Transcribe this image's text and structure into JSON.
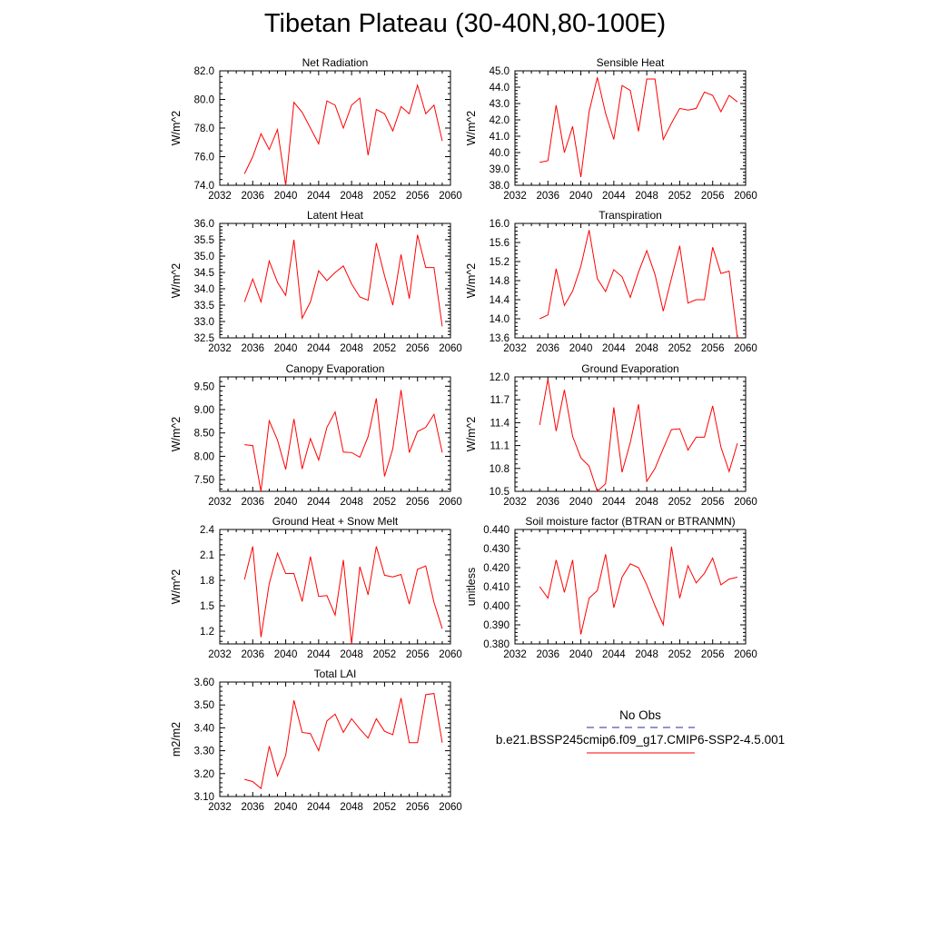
{
  "page": {
    "title": "Tibetan Plateau (30-40N,80-100E)"
  },
  "legend": {
    "entries": [
      {
        "label": "No Obs",
        "color": "#2a2a9a",
        "style": "dashed"
      },
      {
        "label": "b.e21.BSSP245cmip6.f09_g17.CMIP6-SSP2-4.5.001",
        "color": "#ff0000",
        "style": "solid"
      }
    ]
  },
  "chart_data": [
    {
      "type": "line",
      "title": "Net Radiation",
      "ylabel": "W/m^2",
      "xlabel": "",
      "xlim": [
        2032,
        2060
      ],
      "ylim": [
        74.0,
        82.0
      ],
      "xticks": [
        2032,
        2036,
        2040,
        2044,
        2048,
        2052,
        2056,
        2060
      ],
      "yticks": [
        "74.0",
        "76.0",
        "78.0",
        "80.0",
        "82.0"
      ],
      "series": [
        {
          "color": "#ff0000",
          "x": [
            2035,
            2036,
            2037,
            2038,
            2039,
            2040,
            2041,
            2042,
            2043,
            2044,
            2045,
            2046,
            2047,
            2048,
            2049,
            2050,
            2051,
            2052,
            2053,
            2054,
            2055,
            2056,
            2057,
            2058,
            2059
          ],
          "y": [
            74.8,
            76.0,
            77.6,
            76.5,
            77.9,
            74.0,
            79.8,
            79.1,
            78.0,
            76.9,
            79.9,
            79.6,
            78.0,
            79.6,
            80.1,
            76.1,
            79.3,
            79.0,
            77.8,
            79.5,
            79.0,
            81.0,
            79.0,
            79.6,
            77.1
          ]
        }
      ]
    },
    {
      "type": "line",
      "title": "Sensible Heat",
      "ylabel": "W/m^2",
      "xlabel": "",
      "xlim": [
        2032,
        2060
      ],
      "ylim": [
        38.0,
        45.0
      ],
      "xticks": [
        2032,
        2036,
        2040,
        2044,
        2048,
        2052,
        2056,
        2060
      ],
      "yticks": [
        "38.0",
        "39.0",
        "40.0",
        "41.0",
        "42.0",
        "43.0",
        "44.0",
        "45.0"
      ],
      "series": [
        {
          "color": "#ff0000",
          "x": [
            2035,
            2036,
            2037,
            2038,
            2039,
            2040,
            2041,
            2042,
            2043,
            2044,
            2045,
            2046,
            2047,
            2048,
            2049,
            2050,
            2051,
            2052,
            2053,
            2054,
            2055,
            2056,
            2057,
            2058,
            2059
          ],
          "y": [
            39.4,
            39.5,
            42.9,
            40.0,
            41.6,
            38.5,
            42.5,
            44.6,
            42.4,
            40.8,
            44.1,
            43.8,
            41.3,
            44.5,
            44.5,
            40.8,
            41.8,
            42.7,
            42.6,
            42.7,
            43.7,
            43.5,
            42.5,
            43.5,
            43.1
          ]
        }
      ]
    },
    {
      "type": "line",
      "title": "Latent Heat",
      "ylabel": "W/m^2",
      "xlabel": "",
      "xlim": [
        2032,
        2060
      ],
      "ylim": [
        32.5,
        36.0
      ],
      "xticks": [
        2032,
        2036,
        2040,
        2044,
        2048,
        2052,
        2056,
        2060
      ],
      "yticks": [
        "32.5",
        "33.0",
        "33.5",
        "34.0",
        "34.5",
        "35.0",
        "35.5",
        "36.0"
      ],
      "series": [
        {
          "color": "#ff0000",
          "x": [
            2035,
            2036,
            2037,
            2038,
            2039,
            2040,
            2041,
            2042,
            2043,
            2044,
            2045,
            2046,
            2047,
            2048,
            2049,
            2050,
            2051,
            2052,
            2053,
            2054,
            2055,
            2056,
            2057,
            2058,
            2059
          ],
          "y": [
            33.6,
            34.3,
            33.6,
            34.85,
            34.2,
            33.8,
            35.5,
            33.1,
            33.6,
            34.55,
            34.25,
            34.5,
            34.7,
            34.15,
            33.75,
            33.65,
            35.4,
            34.4,
            33.5,
            35.05,
            33.7,
            35.65,
            34.65,
            34.65,
            32.85
          ]
        }
      ]
    },
    {
      "type": "line",
      "title": "Transpiration",
      "ylabel": "W/m^2",
      "xlabel": "",
      "xlim": [
        2032,
        2060
      ],
      "ylim": [
        13.6,
        16.0
      ],
      "xticks": [
        2032,
        2036,
        2040,
        2044,
        2048,
        2052,
        2056,
        2060
      ],
      "yticks": [
        "13.6",
        "14.0",
        "14.4",
        "14.8",
        "15.2",
        "15.6",
        "16.0"
      ],
      "series": [
        {
          "color": "#ff0000",
          "x": [
            2035,
            2036,
            2037,
            2038,
            2039,
            2040,
            2041,
            2042,
            2043,
            2044,
            2045,
            2046,
            2047,
            2048,
            2049,
            2050,
            2051,
            2052,
            2053,
            2054,
            2055,
            2056,
            2057,
            2058,
            2059
          ],
          "y": [
            14.0,
            14.08,
            15.05,
            14.28,
            14.58,
            15.1,
            15.86,
            14.84,
            14.57,
            15.03,
            14.88,
            14.45,
            14.98,
            15.43,
            14.93,
            14.16,
            14.85,
            15.53,
            14.33,
            14.4,
            14.4,
            15.5,
            14.95,
            15.0,
            13.6
          ]
        }
      ]
    },
    {
      "type": "line",
      "title": "Canopy Evaporation",
      "ylabel": "W/m^2",
      "xlabel": "",
      "xlim": [
        2032,
        2060
      ],
      "ylim": [
        7.25,
        9.7
      ],
      "xticks": [
        2032,
        2036,
        2040,
        2044,
        2048,
        2052,
        2056,
        2060
      ],
      "yticks": [
        "7.50",
        "8.00",
        "8.50",
        "9.00",
        "9.50"
      ],
      "series": [
        {
          "color": "#ff0000",
          "x": [
            2035,
            2036,
            2037,
            2038,
            2039,
            2040,
            2041,
            2042,
            2043,
            2044,
            2045,
            2046,
            2047,
            2048,
            2049,
            2050,
            2051,
            2052,
            2053,
            2054,
            2055,
            2056,
            2057,
            2058,
            2059
          ],
          "y": [
            8.25,
            8.23,
            7.25,
            8.76,
            8.35,
            7.72,
            8.8,
            7.73,
            8.38,
            7.92,
            8.62,
            8.95,
            8.09,
            8.08,
            7.98,
            8.42,
            9.24,
            7.57,
            8.16,
            9.42,
            8.08,
            8.53,
            8.62,
            8.9,
            8.08
          ]
        }
      ]
    },
    {
      "type": "line",
      "title": "Ground Evaporation",
      "ylabel": "W/m^2",
      "xlabel": "",
      "xlim": [
        2032,
        2060
      ],
      "ylim": [
        10.5,
        12.0
      ],
      "xticks": [
        2032,
        2036,
        2040,
        2044,
        2048,
        2052,
        2056,
        2060
      ],
      "yticks": [
        "10.5",
        "10.8",
        "11.1",
        "11.4",
        "11.7",
        "12.0"
      ],
      "series": [
        {
          "color": "#ff0000",
          "x": [
            2035,
            2036,
            2037,
            2038,
            2039,
            2040,
            2041,
            2042,
            2043,
            2044,
            2045,
            2046,
            2047,
            2048,
            2049,
            2050,
            2051,
            2052,
            2053,
            2054,
            2055,
            2056,
            2057,
            2058,
            2059
          ],
          "y": [
            11.37,
            11.97,
            11.29,
            11.83,
            11.22,
            10.94,
            10.83,
            10.5,
            10.6,
            11.6,
            10.75,
            11.14,
            11.64,
            10.63,
            10.8,
            11.06,
            11.31,
            11.32,
            11.04,
            11.21,
            11.21,
            11.62,
            11.08,
            10.76,
            11.13
          ]
        }
      ]
    },
    {
      "type": "line",
      "title": "Ground Heat + Snow Melt",
      "ylabel": "W/m^2",
      "xlabel": "",
      "xlim": [
        2032,
        2060
      ],
      "ylim": [
        1.05,
        2.4
      ],
      "xticks": [
        2032,
        2036,
        2040,
        2044,
        2048,
        2052,
        2056,
        2060
      ],
      "yticks": [
        "1.2",
        "1.5",
        "1.8",
        "2.1",
        "2.4"
      ],
      "series": [
        {
          "color": "#ff0000",
          "x": [
            2035,
            2036,
            2037,
            2038,
            2039,
            2040,
            2041,
            2042,
            2043,
            2044,
            2045,
            2046,
            2047,
            2048,
            2049,
            2050,
            2051,
            2052,
            2053,
            2054,
            2055,
            2056,
            2057,
            2058,
            2059
          ],
          "y": [
            1.81,
            2.2,
            1.13,
            1.76,
            2.12,
            1.88,
            1.88,
            1.55,
            2.08,
            1.61,
            1.62,
            1.39,
            2.04,
            1.05,
            1.96,
            1.63,
            2.2,
            1.86,
            1.84,
            1.87,
            1.52,
            1.93,
            1.97,
            1.54,
            1.23
          ]
        }
      ]
    },
    {
      "type": "line",
      "title": "Soil moisture factor (BTRAN or BTRANMN)",
      "ylabel": "unitless",
      "xlabel": "",
      "xlim": [
        2032,
        2060
      ],
      "ylim": [
        0.38,
        0.44
      ],
      "xticks": [
        2032,
        2036,
        2040,
        2044,
        2048,
        2052,
        2056,
        2060
      ],
      "yticks": [
        "0.380",
        "0.390",
        "0.400",
        "0.410",
        "0.420",
        "0.430",
        "0.440"
      ],
      "series": [
        {
          "color": "#ff0000",
          "x": [
            2035,
            2036,
            2037,
            2038,
            2039,
            2040,
            2041,
            2042,
            2043,
            2044,
            2045,
            2046,
            2047,
            2048,
            2049,
            2050,
            2051,
            2052,
            2053,
            2054,
            2055,
            2056,
            2057,
            2058,
            2059
          ],
          "y": [
            0.41,
            0.404,
            0.424,
            0.407,
            0.424,
            0.385,
            0.404,
            0.408,
            0.427,
            0.399,
            0.415,
            0.422,
            0.42,
            0.411,
            0.4,
            0.39,
            0.431,
            0.404,
            0.421,
            0.412,
            0.417,
            0.425,
            0.411,
            0.414,
            0.415
          ]
        }
      ]
    },
    {
      "type": "line",
      "title": "Total LAI",
      "ylabel": "m2/m2",
      "xlabel": "",
      "xlim": [
        2032,
        2060
      ],
      "ylim": [
        3.1,
        3.6
      ],
      "xticks": [
        2032,
        2036,
        2040,
        2044,
        2048,
        2052,
        2056,
        2060
      ],
      "yticks": [
        "3.10",
        "3.20",
        "3.30",
        "3.40",
        "3.50",
        "3.60"
      ],
      "series": [
        {
          "color": "#ff0000",
          "x": [
            2035,
            2036,
            2037,
            2038,
            2039,
            2040,
            2041,
            2042,
            2043,
            2044,
            2045,
            2046,
            2047,
            2048,
            2049,
            2050,
            2051,
            2052,
            2053,
            2054,
            2055,
            2056,
            2057,
            2058,
            2059
          ],
          "y": [
            3.175,
            3.165,
            3.135,
            3.32,
            3.19,
            3.28,
            3.52,
            3.38,
            3.375,
            3.3,
            3.43,
            3.46,
            3.38,
            3.44,
            3.395,
            3.355,
            3.44,
            3.385,
            3.37,
            3.53,
            3.335,
            3.335,
            3.545,
            3.55,
            3.335
          ]
        }
      ]
    }
  ]
}
